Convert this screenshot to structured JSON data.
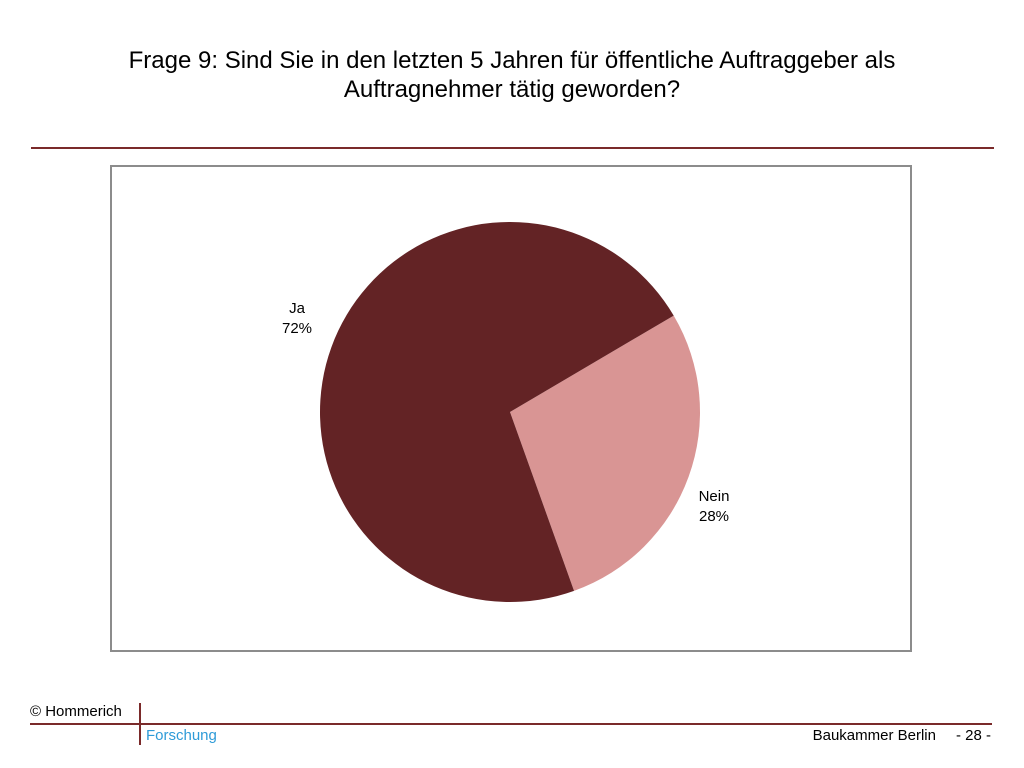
{
  "title": "Frage 9: Sind Sie in den letzten 5 Jahren für öffentliche Auftraggeber als Auftragnehmer tätig geworden?",
  "chart_data": {
    "type": "pie",
    "slices": [
      {
        "category": "Ja",
        "value": 72,
        "label": "72%",
        "color": "#632325"
      },
      {
        "category": "Nein",
        "value": 28,
        "label": "28%",
        "color": "#d99594"
      }
    ]
  },
  "footer": {
    "copyright": "© Hommerich",
    "research": "Forschung",
    "organization": "Baukammer Berlin",
    "page": "- 28 -"
  }
}
